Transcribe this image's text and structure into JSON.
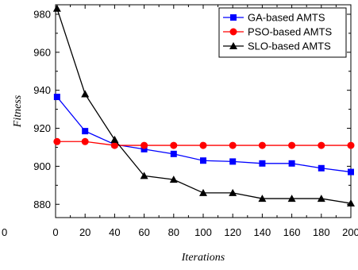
{
  "chart_data": {
    "type": "line",
    "title": "",
    "xlabel": "Iterations",
    "ylabel": "Fitness",
    "xlim": [
      0,
      200
    ],
    "ylim": [
      873,
      985
    ],
    "x_ticks": [
      0,
      20,
      40,
      60,
      80,
      100,
      120,
      140,
      160,
      180,
      200
    ],
    "y_ticks": [
      880,
      900,
      920,
      940,
      960,
      980
    ],
    "stray_tick_label": "0",
    "grid": false,
    "legend_position": "top-right",
    "x": [
      1,
      20,
      40,
      60,
      80,
      100,
      120,
      140,
      160,
      180,
      200
    ],
    "series": [
      {
        "name": "GA-based AMTS",
        "color": "#0000ff",
        "marker": "square",
        "values": [
          936.5,
          918.5,
          911.5,
          909,
          906.5,
          903,
          902.5,
          901.5,
          901.5,
          899,
          897
        ]
      },
      {
        "name": "PSO-based AMTS",
        "color": "#ff0000",
        "marker": "circle",
        "values": [
          913,
          913,
          911,
          911,
          911,
          911,
          911,
          911,
          911,
          911,
          911
        ]
      },
      {
        "name": "SLO-based AMTS",
        "color": "#000000",
        "marker": "triangle",
        "values": [
          983,
          938,
          914,
          895,
          893,
          886,
          886,
          883,
          883,
          883,
          880.5
        ]
      }
    ]
  }
}
